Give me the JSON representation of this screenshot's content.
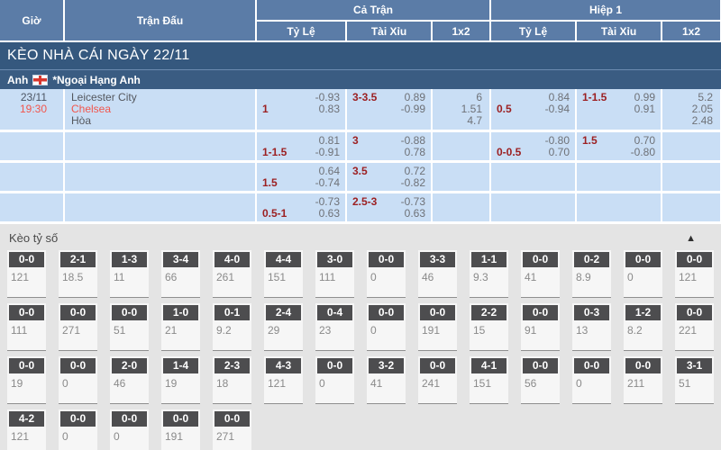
{
  "header": {
    "time": "Giờ",
    "match": "Trận Đấu",
    "full_match": "Cả Trận",
    "first_half": "Hiệp 1",
    "sub": {
      "handicap": "Tỷ Lệ",
      "over_under": "Tài Xỉu",
      "one_x_two": "1x2"
    }
  },
  "banner": {
    "title": "KÈO NHÀ CÁI NGÀY 22/11"
  },
  "league": {
    "country": "Anh",
    "name": "*Ngoại Hạng Anh",
    "flag_icon": "england-flag"
  },
  "match": {
    "date": "23/11",
    "time": "19:30",
    "home": "Leicester City",
    "away": "Chelsea",
    "draw": "Hòa"
  },
  "odds_rows": [
    {
      "ft_handicap": {
        "tl": "",
        "tr": "-0.93",
        "bl": "1",
        "br": "0.83"
      },
      "ft_over_under": {
        "tl": "3-3.5",
        "tr": "0.89",
        "bl": "",
        "br": "-0.99"
      },
      "ft_1x2": [
        "6",
        "1.51",
        "4.7"
      ],
      "h1_handicap": {
        "tl": "",
        "tr": "0.84",
        "bl": "0.5",
        "br": "-0.94"
      },
      "h1_over_under": {
        "tl": "1-1.5",
        "tr": "0.99",
        "bl": "",
        "br": "0.91"
      },
      "h1_1x2": [
        "5.2",
        "2.05",
        "2.48"
      ]
    },
    {
      "ft_handicap": {
        "tl": "",
        "tr": "0.81",
        "bl": "1-1.5",
        "br": "-0.91"
      },
      "ft_over_under": {
        "tl": "3",
        "tr": "-0.88",
        "bl": "",
        "br": "0.78"
      },
      "ft_1x2": [],
      "h1_handicap": {
        "tl": "",
        "tr": "-0.80",
        "bl": "0-0.5",
        "br": "0.70"
      },
      "h1_over_under": {
        "tl": "1.5",
        "tr": "0.70",
        "bl": "",
        "br": "-0.80"
      },
      "h1_1x2": []
    },
    {
      "ft_handicap": {
        "tl": "",
        "tr": "0.64",
        "bl": "1.5",
        "br": "-0.74"
      },
      "ft_over_under": {
        "tl": "3.5",
        "tr": "0.72",
        "bl": "",
        "br": "-0.82"
      },
      "ft_1x2": [],
      "h1_handicap": null,
      "h1_over_under": null,
      "h1_1x2": []
    },
    {
      "ft_handicap": {
        "tl": "",
        "tr": "-0.73",
        "bl": "0.5-1",
        "br": "0.63"
      },
      "ft_over_under": {
        "tl": "2.5-3",
        "tr": "-0.73",
        "bl": "",
        "br": "0.63"
      },
      "ft_1x2": [],
      "h1_handicap": null,
      "h1_over_under": null,
      "h1_1x2": []
    }
  ],
  "score_section": {
    "title": "Kèo tỷ số",
    "collapse_icon": "triangle-up",
    "rows": [
      [
        {
          "score": "0-0",
          "odds": "121"
        },
        {
          "score": "2-1",
          "odds": "18.5"
        },
        {
          "score": "1-3",
          "odds": "11"
        },
        {
          "score": "3-4",
          "odds": "66"
        },
        {
          "score": "4-0",
          "odds": "261"
        },
        {
          "score": "4-4",
          "odds": "151"
        },
        {
          "score": "3-0",
          "odds": "111"
        },
        {
          "score": "0-0",
          "odds": "0"
        },
        {
          "score": "3-3",
          "odds": "46"
        },
        {
          "score": "1-1",
          "odds": "9.3"
        },
        {
          "score": "0-0",
          "odds": "41"
        },
        {
          "score": "0-2",
          "odds": "8.9"
        },
        {
          "score": "0-0",
          "odds": "0"
        },
        {
          "score": "0-0",
          "odds": "121"
        }
      ],
      [
        {
          "score": "0-0",
          "odds": "111"
        },
        {
          "score": "0-0",
          "odds": "271"
        },
        {
          "score": "0-0",
          "odds": "51"
        },
        {
          "score": "1-0",
          "odds": "21"
        },
        {
          "score": "0-1",
          "odds": "9.2"
        },
        {
          "score": "2-4",
          "odds": "29"
        },
        {
          "score": "0-4",
          "odds": "23"
        },
        {
          "score": "0-0",
          "odds": "0"
        },
        {
          "score": "0-0",
          "odds": "191"
        },
        {
          "score": "2-2",
          "odds": "15"
        },
        {
          "score": "0-0",
          "odds": "91"
        },
        {
          "score": "0-3",
          "odds": "13"
        },
        {
          "score": "1-2",
          "odds": "8.2"
        },
        {
          "score": "0-0",
          "odds": "221"
        }
      ],
      [
        {
          "score": "0-0",
          "odds": "19"
        },
        {
          "score": "0-0",
          "odds": "0"
        },
        {
          "score": "2-0",
          "odds": "46"
        },
        {
          "score": "1-4",
          "odds": "19"
        },
        {
          "score": "2-3",
          "odds": "18"
        },
        {
          "score": "4-3",
          "odds": "121"
        },
        {
          "score": "0-0",
          "odds": "0"
        },
        {
          "score": "3-2",
          "odds": "41"
        },
        {
          "score": "0-0",
          "odds": "241"
        },
        {
          "score": "4-1",
          "odds": "151"
        },
        {
          "score": "0-0",
          "odds": "56"
        },
        {
          "score": "0-0",
          "odds": "0"
        },
        {
          "score": "0-0",
          "odds": "211"
        },
        {
          "score": "3-1",
          "odds": "51"
        }
      ],
      [
        {
          "score": "4-2",
          "odds": "121"
        },
        {
          "score": "0-0",
          "odds": "0"
        },
        {
          "score": "0-0",
          "odds": "0"
        },
        {
          "score": "0-0",
          "odds": "191"
        },
        {
          "score": "0-0",
          "odds": "271"
        }
      ]
    ]
  },
  "colors": {
    "header_blue": "#5b7ca7",
    "banner_blue": "#35587e",
    "row_blue": "#c9def5",
    "handicap_red": "#9c2022",
    "accent_red": "#f2554c",
    "score_header_gray": "#4d4d4f"
  }
}
